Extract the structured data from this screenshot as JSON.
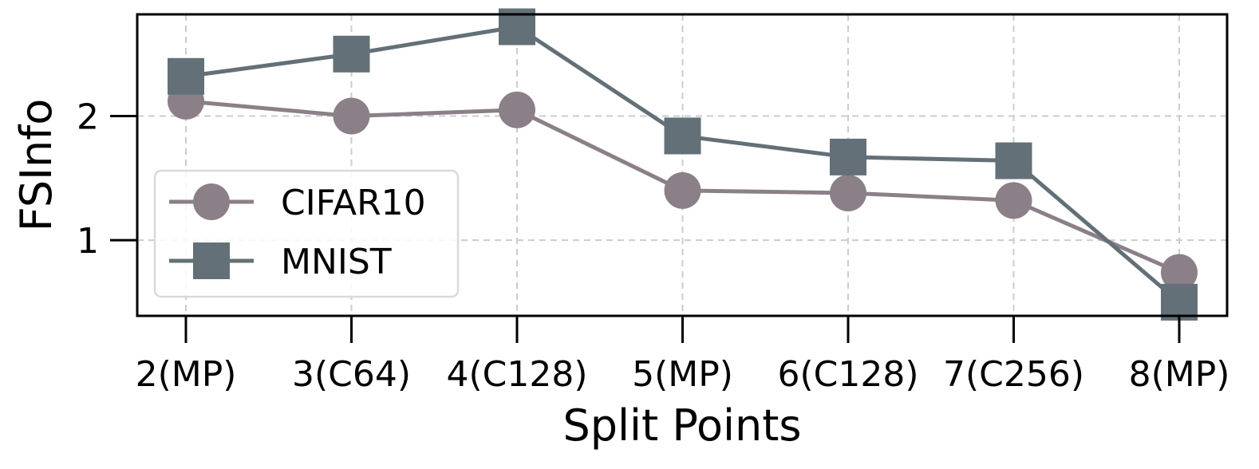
{
  "chart_data": {
    "type": "line",
    "xlabel": "Split Points",
    "ylabel": "FSInfo",
    "categories": [
      "2(MP)",
      "3(C64)",
      "4(C128)",
      "5(MP)",
      "6(C128)",
      "7(C256)",
      "8(MP)"
    ],
    "ylim": [
      0.39,
      2.82
    ],
    "yticks": [
      1,
      2
    ],
    "grid": true,
    "legend_position": "center-left",
    "series": [
      {
        "name": "CIFAR10",
        "marker": "circle",
        "color": "#8b8087",
        "values": [
          2.12,
          2.0,
          2.05,
          1.4,
          1.38,
          1.32,
          0.74
        ]
      },
      {
        "name": "MNIST",
        "marker": "square",
        "color": "#637077",
        "values": [
          2.32,
          2.5,
          2.72,
          1.84,
          1.67,
          1.64,
          0.5
        ]
      }
    ]
  }
}
